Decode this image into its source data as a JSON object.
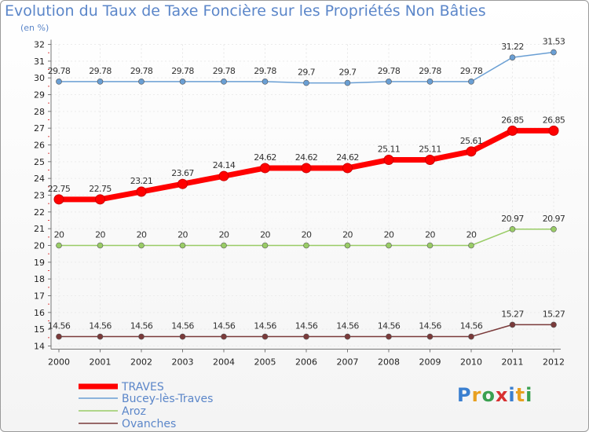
{
  "chart_data": {
    "type": "line",
    "title": "Evolution du Taux de Taxe Foncière sur les Propriétés Non Bâties",
    "ylabel": "(en %)",
    "xlabel": "",
    "ylim": [
      14,
      32
    ],
    "yticks": [
      "14",
      "15",
      "16",
      "17",
      "18",
      "19",
      "20",
      "21",
      "22",
      "23",
      "24",
      "25",
      "26",
      "27",
      "28",
      "29",
      "30",
      "31",
      "32"
    ],
    "categories": [
      "2000",
      "2001",
      "2002",
      "2003",
      "2004",
      "2005",
      "2006",
      "2007",
      "2008",
      "2009",
      "2010",
      "2011",
      "2012"
    ],
    "series": [
      {
        "name": "TRAVES",
        "color": "#ff0000",
        "emphasis": true,
        "values": [
          22.75,
          22.75,
          23.21,
          23.67,
          24.14,
          24.62,
          24.62,
          24.62,
          25.11,
          25.11,
          25.61,
          26.85,
          26.85
        ],
        "labels": [
          "22.75",
          "22.75",
          "23.21",
          "23.67",
          "24.14",
          "24.62",
          "24.62",
          "24.62",
          "25.11",
          "25.11",
          "25.61",
          "26.85",
          "26.85"
        ]
      },
      {
        "name": "Bucey-lès-Traves",
        "color": "#6a9fd4",
        "emphasis": false,
        "values": [
          29.78,
          29.78,
          29.78,
          29.78,
          29.78,
          29.78,
          29.7,
          29.7,
          29.78,
          29.78,
          29.78,
          31.22,
          31.53
        ],
        "labels": [
          "29.78",
          "29.78",
          "29.78",
          "29.78",
          "29.78",
          "29.78",
          "29.7",
          "29.7",
          "29.78",
          "29.78",
          "29.78",
          "31.22",
          "31.53"
        ]
      },
      {
        "name": "Aroz",
        "color": "#99cc66",
        "emphasis": false,
        "values": [
          20,
          20,
          20,
          20,
          20,
          20,
          20,
          20,
          20,
          20,
          20,
          20.97,
          20.97
        ],
        "labels": [
          "20",
          "20",
          "20",
          "20",
          "20",
          "20",
          "20",
          "20",
          "20",
          "20",
          "20",
          "20.97",
          "20.97"
        ]
      },
      {
        "name": "Ovanches",
        "color": "#7a3a3a",
        "emphasis": false,
        "values": [
          14.56,
          14.56,
          14.56,
          14.56,
          14.56,
          14.56,
          14.56,
          14.56,
          14.56,
          14.56,
          14.56,
          15.27,
          15.27
        ],
        "labels": [
          "14.56",
          "14.56",
          "14.56",
          "14.56",
          "14.56",
          "14.56",
          "14.56",
          "14.56",
          "14.56",
          "14.56",
          "14.56",
          "15.27",
          "15.27"
        ]
      }
    ],
    "legend_position": "bottom-left"
  },
  "logo": {
    "text": "Proxiti"
  }
}
